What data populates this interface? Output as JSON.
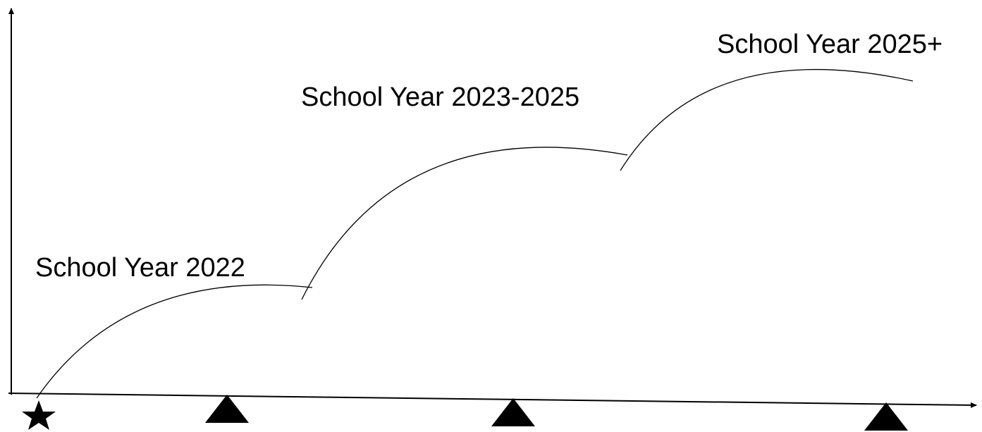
{
  "labels": [
    "School Year 2022",
    "School Year 2023-2025",
    "School Year 2025+"
  ]
}
